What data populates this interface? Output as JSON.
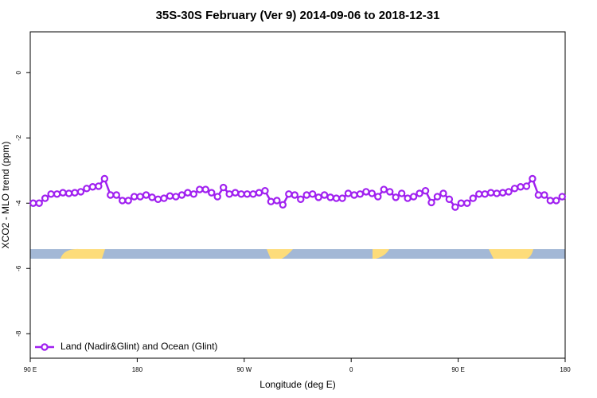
{
  "chart_data": {
    "type": "line",
    "title": "35S-30S February (Ver 9)   2014-09-06 to 2018-12-31",
    "xlabel": "Longitude (deg E)",
    "ylabel": "XCO2 - MLO trend (ppm)",
    "xlim": [
      90,
      540
    ],
    "ylim": [
      -8.75,
      1.25
    ],
    "xticks": [
      {
        "value": 90,
        "label": "90 E"
      },
      180,
      {
        "value": 270,
        "label": "90 W"
      },
      {
        "value": 360,
        "label": "0"
      },
      {
        "value": 450,
        "label": "90 E"
      },
      {
        "value": 540,
        "label": "180"
      }
    ],
    "yticks": [
      -8,
      -6,
      -4,
      -2,
      0
    ],
    "legend": "bottom-left",
    "x": [
      92.5,
      97.5,
      102.5,
      107.5,
      112.5,
      117.5,
      122.5,
      127.5,
      132.5,
      137.5,
      142.5,
      147.5,
      152.5,
      157.5,
      162.5,
      167.5,
      172.5,
      177.5,
      182.5,
      187.5,
      192.5,
      197.5,
      202.5,
      207.5,
      212.5,
      217.5,
      222.5,
      227.5,
      232.5,
      237.5,
      242.5,
      247.5,
      252.5,
      257.5,
      262.5,
      267.5,
      272.5,
      277.5,
      282.5,
      287.5,
      292.5,
      297.5,
      302.5,
      307.5,
      312.5,
      317.5,
      322.5,
      327.5,
      332.5,
      337.5,
      342.5,
      347.5,
      352.5,
      357.5,
      362.5,
      367.5,
      372.5,
      377.5,
      382.5,
      387.5,
      392.5,
      397.5,
      402.5,
      407.5,
      412.5,
      417.5,
      422.5,
      427.5,
      432.5,
      437.5,
      442.5,
      447.5,
      452.5,
      457.5,
      462.5,
      467.5,
      472.5,
      477.5,
      482.5,
      487.5,
      492.5,
      497.5,
      502.5,
      507.5,
      512.5,
      517.5,
      522.5,
      527.5,
      532.5,
      537.5
    ],
    "series": [
      {
        "name": "Land (Nadir&Glint) and Ocean (Glint)",
        "color": "#a020f0",
        "values": [
          -4.0,
          -4.0,
          -3.85,
          -3.72,
          -3.72,
          -3.68,
          -3.7,
          -3.68,
          -3.65,
          -3.55,
          -3.5,
          -3.48,
          -3.25,
          -3.75,
          -3.75,
          -3.92,
          -3.92,
          -3.8,
          -3.8,
          -3.75,
          -3.82,
          -3.88,
          -3.85,
          -3.78,
          -3.8,
          -3.75,
          -3.68,
          -3.72,
          -3.58,
          -3.58,
          -3.68,
          -3.8,
          -3.52,
          -3.72,
          -3.68,
          -3.72,
          -3.72,
          -3.72,
          -3.68,
          -3.62,
          -3.95,
          -3.92,
          -4.05,
          -3.72,
          -3.75,
          -3.88,
          -3.75,
          -3.72,
          -3.82,
          -3.75,
          -3.82,
          -3.85,
          -3.85,
          -3.7,
          -3.75,
          -3.72,
          -3.65,
          -3.7,
          -3.8,
          -3.58,
          -3.65,
          -3.82,
          -3.7,
          -3.85,
          -3.8,
          -3.7,
          -3.62,
          -3.98,
          -3.8,
          -3.7,
          -3.88,
          -4.12,
          -4.0,
          -4.0,
          -3.85,
          -3.72,
          -3.72,
          -3.68,
          -3.7,
          -3.68,
          -3.65,
          -3.55,
          -3.5,
          -3.48,
          -3.25,
          -3.75,
          -3.75,
          -3.92,
          -3.92,
          -3.8
        ]
      }
    ]
  }
}
